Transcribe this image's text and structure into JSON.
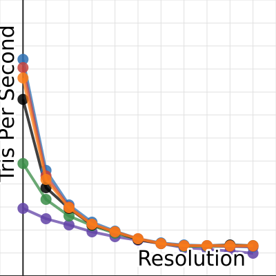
{
  "chart_data": {
    "type": "line",
    "x_label": "Resolution",
    "y_label": "Tris Per Second",
    "x": [
      0,
      1,
      2,
      3,
      4,
      5,
      6,
      7,
      8,
      9,
      10
    ],
    "xlim": [
      -1,
      11
    ],
    "ylim": [
      0,
      12
    ],
    "grid": true,
    "series": [
      {
        "color": "#6042a6",
        "values": [
          2.94,
          2.49,
          2.22,
          1.92,
          1.71,
          1.56,
          1.41,
          1.23,
          1.17,
          1.08,
          0.99
        ]
      },
      {
        "color": "#388c46",
        "values": [
          4.89,
          3.33,
          2.61,
          2.19,
          1.86,
          1.59,
          1.41,
          1.29,
          1.29,
          1.29,
          1.29
        ]
      },
      {
        "color": "#000000",
        "values": [
          7.68,
          3.84,
          2.94,
          2.22,
          1.92,
          1.59,
          1.41,
          1.32,
          1.32,
          1.35,
          1.32
        ]
      },
      {
        "color": "#2d70b3",
        "values": [
          9.42,
          4.59,
          3.09,
          2.34,
          1.95,
          1.62,
          1.44,
          1.35,
          1.32,
          1.29,
          1.26
        ]
      },
      {
        "color": "#c74440",
        "values": [
          9.06,
          4.35,
          3.0,
          2.25,
          1.92,
          1.62,
          1.41,
          1.32,
          1.32,
          1.29,
          1.29
        ]
      },
      {
        "color": "#fa7e19",
        "values": [
          8.61,
          4.2,
          2.97,
          2.25,
          1.92,
          1.62,
          1.41,
          1.32,
          1.32,
          1.32,
          1.32
        ]
      }
    ]
  }
}
